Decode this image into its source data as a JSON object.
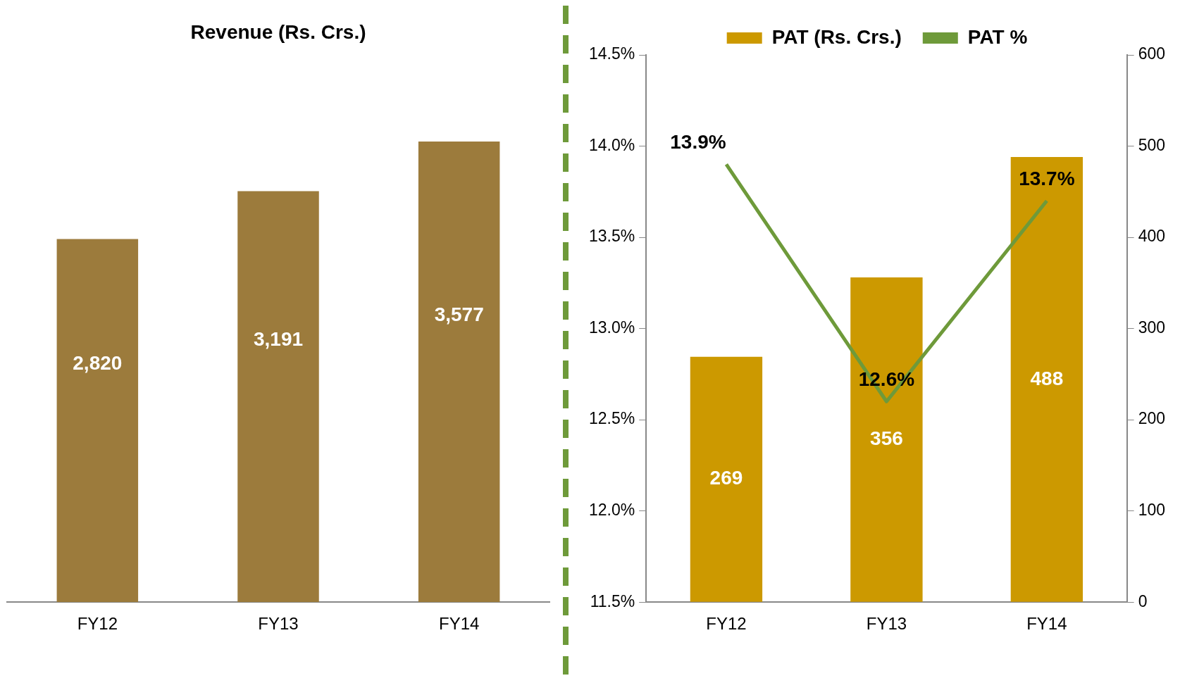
{
  "chart_data": [
    {
      "type": "bar",
      "title": "Revenue (Rs. Crs.)",
      "categories": [
        "FY12",
        "FY13",
        "FY14"
      ],
      "values": [
        2820,
        3191,
        3577
      ],
      "color": "#9c7b3c",
      "value_labels": [
        "2,820",
        "3,191",
        "3,577"
      ],
      "tick_labels": "x",
      "grid": false,
      "legend": false
    },
    {
      "type": "bar",
      "categories": [
        "FY12",
        "FY13",
        "FY14"
      ],
      "series": [
        {
          "name": "PAT (Rs. Crs.)",
          "type": "bar",
          "axis": "y2",
          "color": "#cc9900",
          "values": [
            269,
            356,
            488
          ],
          "value_labels": [
            "269",
            "356",
            "488"
          ]
        },
        {
          "name": "PAT %",
          "type": "line",
          "axis": "y",
          "color": "#6e9a3a",
          "values": [
            13.9,
            12.6,
            13.7
          ],
          "value_labels": [
            "13.9%",
            "12.6%",
            "13.7%"
          ]
        }
      ],
      "ylim": [
        11.5,
        14.5
      ],
      "yticks": [
        {
          "value": 11.5,
          "label": "11.5%"
        },
        {
          "value": 12.0,
          "label": "12.0%"
        },
        {
          "value": 12.5,
          "label": "12.5%"
        },
        {
          "value": 13.0,
          "label": "13.0%"
        },
        {
          "value": 13.5,
          "label": "13.5%"
        },
        {
          "value": 14.0,
          "label": "14.0%"
        },
        {
          "value": 14.5,
          "label": "14.5%"
        }
      ],
      "y2lim": [
        0,
        600
      ],
      "y2ticks": [
        0,
        100,
        200,
        300,
        400,
        500,
        600
      ],
      "marker": "none",
      "grid": false,
      "legend": "top"
    }
  ]
}
